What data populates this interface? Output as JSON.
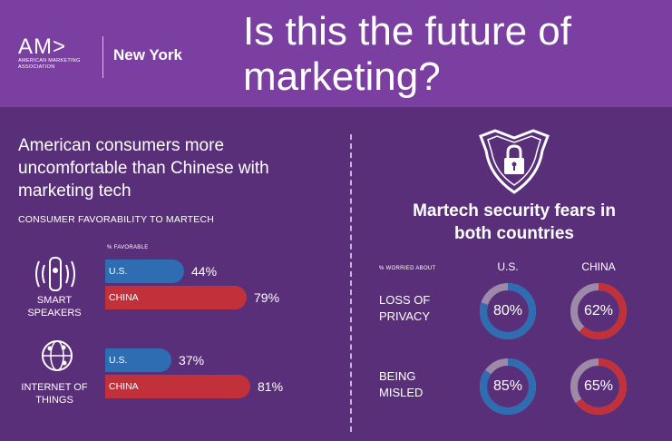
{
  "header": {
    "logo_mark": "AM>",
    "logo_sub": "AMERICAN MARKETING ASSOCIATION",
    "city": "New York",
    "headline": "Is this the future of marketing?"
  },
  "left": {
    "title": "American consumers more uncomfortable than Chinese with marketing tech",
    "subtitle": "CONSUMER FAVORABILITY TO MARTECH",
    "pct_header": "% FAVORABLE"
  },
  "right": {
    "title": "Martech security fears in both countries",
    "worried_header": "% WORRIED ABOUT",
    "col_us": "U.S.",
    "col_china": "CHINA"
  },
  "chart_data": [
    {
      "type": "bar",
      "title": "CONSUMER FAVORABILITY TO MARTECH",
      "categories": [
        "SMART SPEAKERS",
        "INTERNET OF THINGS"
      ],
      "series": [
        {
          "name": "U.S.",
          "values": [
            44,
            37
          ]
        },
        {
          "name": "CHINA",
          "values": [
            79,
            81
          ]
        }
      ],
      "value_labels": {
        "U.S.": [
          "44%",
          "37%"
        ],
        "CHINA": [
          "79%",
          "81%"
        ]
      },
      "ylim": [
        0,
        100
      ],
      "colors": {
        "U.S.": "#2f6db3",
        "CHINA": "#c2313a"
      }
    },
    {
      "type": "pie",
      "title": "Martech security fears in both countries",
      "categories": [
        "LOSS OF PRIVACY",
        "BEING MISLED"
      ],
      "series": [
        {
          "name": "U.S.",
          "values": [
            80,
            85
          ]
        },
        {
          "name": "CHINA",
          "values": [
            62,
            65
          ]
        }
      ],
      "value_labels": {
        "U.S.": [
          "80%",
          "85%"
        ],
        "CHINA": [
          "62%",
          "65%"
        ]
      },
      "colors": {
        "U.S.": "#2f6db3",
        "CHINA": "#c2313a",
        "remainder": "#9c8aa8"
      }
    }
  ]
}
